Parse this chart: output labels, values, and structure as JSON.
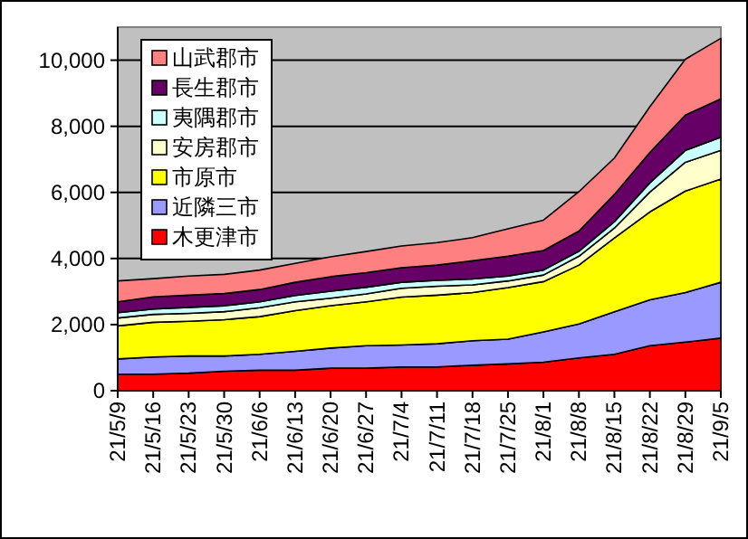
{
  "chart_data": {
    "type": "area",
    "stacked": true,
    "categories": [
      "21/5/9",
      "21/5/16",
      "21/5/23",
      "21/5/30",
      "21/6/6",
      "21/6/13",
      "21/6/20",
      "21/6/27",
      "21/7/4",
      "21/7/11",
      "21/7/18",
      "21/7/25",
      "21/8/1",
      "21/8/8",
      "21/8/15",
      "21/8/22",
      "21/8/29",
      "21/9/5"
    ],
    "series": [
      {
        "name": "木更津市",
        "color": "#ff0000",
        "values": [
          500,
          500,
          530,
          590,
          620,
          620,
          680,
          680,
          720,
          720,
          770,
          810,
          860,
          990,
          1100,
          1360,
          1470,
          1590
        ]
      },
      {
        "name": "近隣三市",
        "color": "#9999ff",
        "values": [
          460,
          520,
          520,
          460,
          480,
          570,
          610,
          680,
          660,
          700,
          740,
          750,
          920,
          1030,
          1290,
          1390,
          1500,
          1690
        ]
      },
      {
        "name": "市原市",
        "color": "#ffff00",
        "values": [
          1000,
          1050,
          1050,
          1100,
          1140,
          1230,
          1280,
          1330,
          1450,
          1470,
          1460,
          1560,
          1520,
          1780,
          2230,
          2660,
          3070,
          3120
        ]
      },
      {
        "name": "安房郡市",
        "color": "#ffffcc",
        "values": [
          240,
          240,
          240,
          240,
          270,
          270,
          230,
          240,
          270,
          270,
          230,
          200,
          200,
          270,
          300,
          600,
          870,
          870
        ]
      },
      {
        "name": "夷隅郡市",
        "color": "#ccffff",
        "values": [
          160,
          160,
          180,
          180,
          180,
          190,
          210,
          200,
          180,
          180,
          180,
          150,
          150,
          150,
          190,
          280,
          360,
          400
        ]
      },
      {
        "name": "長生郡市",
        "color": "#660066",
        "values": [
          330,
          370,
          370,
          370,
          370,
          400,
          440,
          440,
          440,
          460,
          550,
          600,
          590,
          610,
          830,
          920,
          1070,
          1160
        ]
      },
      {
        "name": "山武郡市",
        "color": "#ff8080",
        "values": [
          630,
          550,
          580,
          580,
          590,
          570,
          600,
          640,
          660,
          680,
          700,
          830,
          920,
          1190,
          1100,
          1380,
          1690,
          1830
        ]
      }
    ],
    "ylim": [
      0,
      11000
    ],
    "yticks": [
      {
        "value": 0,
        "label": "0"
      },
      {
        "value": 2000,
        "label": "2,000"
      },
      {
        "value": 4000,
        "label": "4,000"
      },
      {
        "value": 6000,
        "label": "6,000"
      },
      {
        "value": 8000,
        "label": "8,000"
      },
      {
        "value": 10000,
        "label": "10,000"
      }
    ],
    "grid": "y",
    "legend": "top left"
  }
}
